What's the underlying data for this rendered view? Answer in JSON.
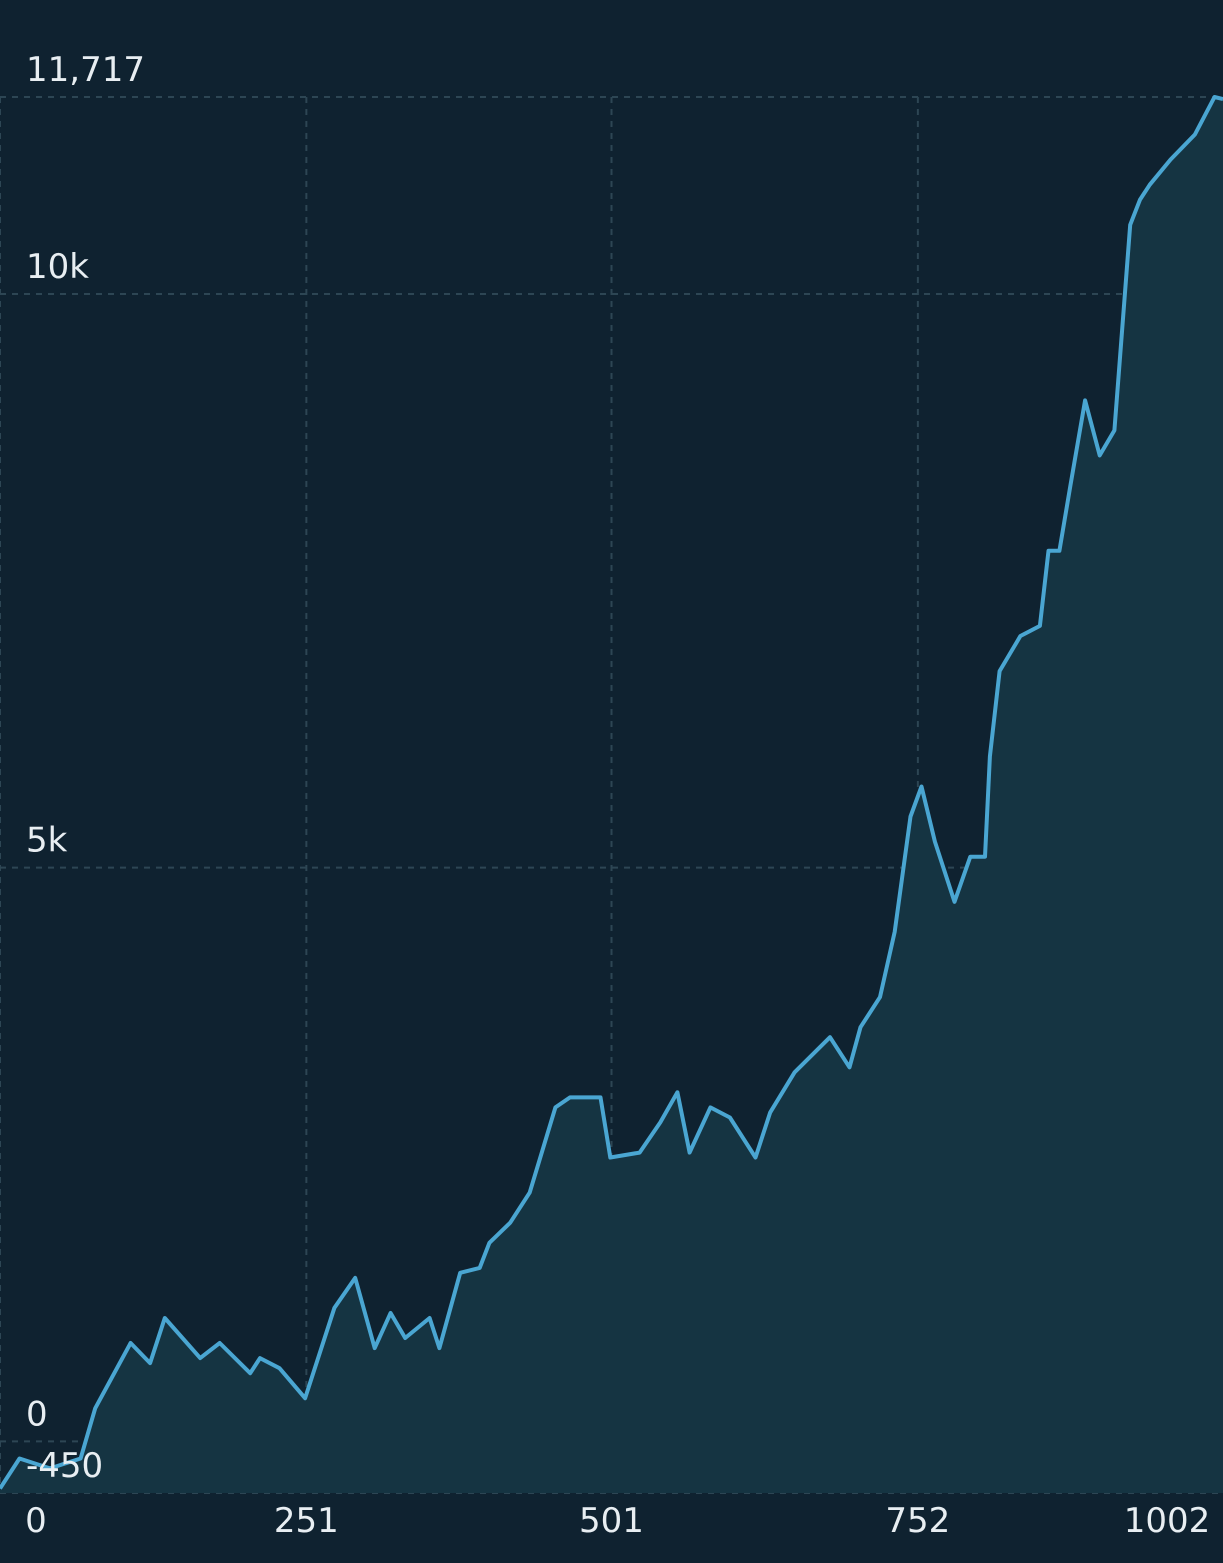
{
  "chart_data": {
    "type": "area",
    "x": [
      0,
      16,
      41,
      66,
      78,
      107,
      123,
      135,
      164,
      180,
      205,
      213,
      229,
      250,
      274,
      291,
      307,
      320,
      332,
      352,
      360,
      377,
      393,
      401,
      418,
      434,
      455,
      467,
      492,
      500,
      524,
      541,
      555,
      565,
      582,
      598,
      619,
      631,
      651,
      680,
      696,
      705,
      721,
      733,
      746,
      755,
      766,
      782,
      795,
      807,
      811,
      819,
      836,
      852,
      859,
      868,
      877,
      889,
      901,
      913,
      926,
      934,
      942,
      959,
      979,
      995,
      1002
    ],
    "values": [
      -411,
      -149,
      -236,
      -149,
      288,
      857,
      682,
      1075,
      726,
      857,
      594,
      726,
      638,
      376,
      1163,
      1425,
      813,
      1119,
      901,
      1075,
      813,
      1469,
      1512,
      1731,
      1906,
      2168,
      2911,
      2998,
      2998,
      2474,
      2517,
      2780,
      3042,
      2517,
      2911,
      2823,
      2474,
      2867,
      3217,
      3523,
      3260,
      3610,
      3872,
      4441,
      5446,
      5708,
      5227,
      4703,
      5096,
      5096,
      5970,
      6713,
      7019,
      7107,
      7762,
      7762,
      8330,
      9073,
      8593,
      8811,
      10603,
      10822,
      10953,
      11171,
      11390,
      11717,
      11700
    ],
    "color": "#4aa6d2",
    "fill": "#153442",
    "xlim": [
      0,
      1002
    ],
    "xticks": [
      0,
      251,
      501,
      752,
      1002
    ],
    "ylim": [
      -450,
      11717
    ],
    "yticks": [
      -450,
      0,
      {
        "value": 5000,
        "label": "5k"
      },
      {
        "value": 10000,
        "label": "10k"
      },
      {
        "value": 11717,
        "label": "11,717"
      }
    ],
    "grid": true
  }
}
